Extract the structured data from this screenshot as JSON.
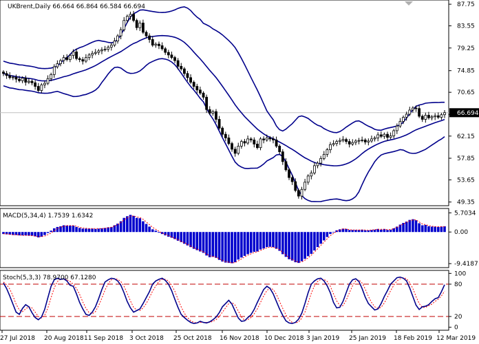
{
  "chart_data": [
    {
      "type": "candlestick",
      "symbol_header": "UKBrent,Daily  66.664 66.864 66.584 66.694",
      "price_scale": [
        87.75,
        83.55,
        79.25,
        74.85,
        70.65,
        66.35,
        62.15,
        57.85,
        53.65,
        49.35
      ],
      "ylim": [
        48.9,
        88.3
      ],
      "last_price_label": "66.694",
      "last_price": 66.694,
      "x_ticks": [
        "27 Jul 2018",
        "20 Aug 2018",
        "11 Sep 2018",
        "3 Oct 2018",
        "25 Oct 2018",
        "16 Nov 2018",
        "10 Dec 2018",
        "3 Jan 2019",
        "25 Jan 2019",
        "18 Feb 2019",
        "12 Mar 2019"
      ],
      "indicator": "Bollinger Bands",
      "close": [
        74.3,
        73.9,
        73.5,
        73.6,
        73.2,
        72.9,
        73.4,
        72.6,
        72.8,
        72.5,
        71.8,
        71.0,
        72.1,
        72.4,
        73.3,
        74.1,
        75.6,
        76.2,
        76.8,
        77.4,
        77.0,
        77.8,
        78.5,
        77.2,
        77.0,
        76.7,
        77.4,
        77.9,
        78.2,
        78.4,
        78.7,
        78.9,
        79.0,
        79.4,
        79.8,
        80.6,
        81.6,
        82.8,
        84.6,
        85.4,
        85.8,
        84.6,
        83.2,
        84.1,
        82.3,
        81.6,
        80.9,
        79.8,
        80.0,
        79.7,
        79.1,
        78.4,
        77.9,
        77.4,
        76.8,
        75.7,
        75.2,
        74.3,
        73.5,
        72.6,
        71.8,
        71.1,
        70.5,
        69.7,
        67.3,
        66.6,
        66.9,
        65.4,
        63.7,
        62.5,
        61.8,
        60.7,
        59.6,
        58.8,
        60.2,
        61.1,
        60.8,
        61.6,
        61.4,
        60.6,
        59.9,
        61.6,
        61.4,
        61.8,
        61.6,
        61.4,
        60.2,
        59.1,
        57.2,
        55.6,
        54.1,
        53.3,
        51.6,
        50.5,
        51.8,
        53.2,
        54.4,
        55.0,
        56.4,
        56.9,
        57.8,
        58.6,
        59.5,
        60.5,
        60.7,
        61.1,
        61.3,
        61.5,
        61.1,
        60.6,
        60.9,
        61.2,
        61.3,
        61.4,
        61.0,
        61.2,
        61.6,
        61.8,
        62.4,
        62.1,
        62.5,
        61.9,
        62.2,
        63.2,
        64.1,
        65.0,
        65.8,
        66.4,
        67.2,
        67.6,
        67.5,
        66.0,
        65.4,
        66.2,
        65.7,
        65.9,
        66.1,
        65.8,
        66.3,
        66.694
      ]
    },
    {
      "type": "macd",
      "label": "MACD(5,34,4) 1.7539 1.6342",
      "scale": [
        "5.7034",
        "0.00",
        "-9.4187"
      ],
      "ylim": [
        -10.2,
        6.6
      ],
      "histogram": [
        -0.6,
        -0.7,
        -0.8,
        -0.9,
        -0.9,
        -1.0,
        -1.0,
        -1.0,
        -1.1,
        -1.1,
        -1.3,
        -1.6,
        -1.4,
        -0.9,
        -0.3,
        0.4,
        1.1,
        1.5,
        1.7,
        2.0,
        1.9,
        1.9,
        1.9,
        1.5,
        1.2,
        1.0,
        1.0,
        1.0,
        1.0,
        0.9,
        1.0,
        1.1,
        1.2,
        1.4,
        1.5,
        2.0,
        2.5,
        3.2,
        4.2,
        4.7,
        5.1,
        4.8,
        4.2,
        4.1,
        3.2,
        2.4,
        1.6,
        0.8,
        0.4,
        -0.2,
        -0.6,
        -1.0,
        -1.4,
        -1.7,
        -2.1,
        -2.6,
        -3.0,
        -3.5,
        -4.0,
        -4.5,
        -5.0,
        -5.4,
        -5.8,
        -6.2,
        -7.0,
        -7.5,
        -7.4,
        -7.7,
        -8.3,
        -8.8,
        -9.1,
        -9.2,
        -9.3,
        -9.0,
        -8.2,
        -7.6,
        -7.1,
        -6.6,
        -6.2,
        -5.9,
        -5.8,
        -5.2,
        -4.9,
        -4.5,
        -4.4,
        -4.5,
        -5.0,
        -5.6,
        -6.6,
        -7.4,
        -8.1,
        -8.5,
        -9.0,
        -9.2,
        -8.7,
        -8.0,
        -7.2,
        -6.5,
        -5.5,
        -4.5,
        -3.5,
        -2.5,
        -1.5,
        -0.6,
        0.0,
        0.5,
        0.8,
        1.0,
        0.9,
        0.6,
        0.6,
        0.6,
        0.6,
        0.7,
        0.5,
        0.5,
        0.6,
        0.7,
        0.9,
        0.7,
        0.9,
        0.6,
        0.7,
        1.1,
        1.6,
        2.2,
        2.7,
        3.1,
        3.6,
        3.8,
        3.5,
        2.6,
        2.0,
        2.1,
        1.7,
        1.6,
        1.6,
        1.5,
        1.6,
        1.7
      ],
      "signal": [
        -0.5,
        -0.6,
        -0.7,
        -0.8,
        -0.8,
        -0.9,
        -1.0,
        -1.0,
        -1.0,
        -1.1,
        -1.2,
        -1.4,
        -1.4,
        -1.2,
        -0.8,
        -0.3,
        0.4,
        1.0,
        1.4,
        1.7,
        1.9,
        1.9,
        1.9,
        1.7,
        1.4,
        1.2,
        1.1,
        1.0,
        1.0,
        1.0,
        1.0,
        1.0,
        1.1,
        1.3,
        1.4,
        1.8,
        2.2,
        2.8,
        3.6,
        4.2,
        4.7,
        4.8,
        4.5,
        4.3,
        3.8,
        3.0,
        2.2,
        1.4,
        0.8,
        0.2,
        -0.3,
        -0.7,
        -1.1,
        -1.5,
        -1.9,
        -2.3,
        -2.8,
        -3.2,
        -3.7,
        -4.2,
        -4.7,
        -5.1,
        -5.5,
        -5.9,
        -6.6,
        -7.1,
        -7.3,
        -7.5,
        -8.0,
        -8.5,
        -8.8,
        -9.0,
        -9.2,
        -9.1,
        -8.6,
        -8.0,
        -7.4,
        -6.9,
        -6.5,
        -6.1,
        -5.9,
        -5.5,
        -5.1,
        -4.7,
        -4.5,
        -4.5,
        -4.8,
        -5.3,
        -6.1,
        -6.9,
        -7.6,
        -8.2,
        -8.7,
        -9.0,
        -8.9,
        -8.4,
        -7.7,
        -6.9,
        -6.0,
        -5.0,
        -4.0,
        -3.0,
        -2.0,
        -1.1,
        -0.4,
        0.2,
        0.6,
        0.9,
        0.9,
        0.7,
        0.6,
        0.6,
        0.6,
        0.6,
        0.6,
        0.5,
        0.6,
        0.7,
        0.8,
        0.8,
        0.8,
        0.7,
        0.7,
        1.0,
        1.4,
        1.9,
        2.4,
        2.9,
        3.3,
        3.6,
        3.6,
        3.0,
        2.4,
        2.2,
        1.9,
        1.7,
        1.6,
        1.6,
        1.6,
        1.6
      ]
    },
    {
      "type": "stochastic",
      "label": "Stoch(5,3,3) 78.9700 67.1280",
      "scale": [
        "100",
        "80",
        "20",
        "0"
      ],
      "levels": [
        80,
        20
      ],
      "ylim": [
        -3,
        103
      ],
      "k": [
        82,
        72,
        58,
        43,
        28,
        24,
        35,
        42,
        38,
        27,
        18,
        14,
        19,
        33,
        55,
        76,
        88,
        91,
        89,
        90,
        86,
        78,
        76,
        62,
        46,
        34,
        24,
        22,
        28,
        38,
        53,
        70,
        84,
        88,
        91,
        90,
        86,
        78,
        64,
        48,
        36,
        28,
        31,
        34,
        44,
        55,
        66,
        80,
        86,
        89,
        91,
        87,
        80,
        68,
        52,
        37,
        24,
        18,
        13,
        9,
        7,
        8,
        11,
        9,
        8,
        10,
        14,
        19,
        27,
        38,
        44,
        50,
        43,
        30,
        17,
        11,
        12,
        18,
        23,
        33,
        46,
        58,
        70,
        76,
        72,
        62,
        48,
        34,
        22,
        12,
        8,
        7,
        9,
        15,
        26,
        44,
        64,
        80,
        86,
        90,
        91,
        86,
        77,
        64,
        46,
        36,
        37,
        48,
        64,
        80,
        88,
        90,
        85,
        72,
        56,
        44,
        38,
        32,
        34,
        44,
        57,
        68,
        80,
        86,
        92,
        93,
        91,
        86,
        73,
        57,
        41,
        33,
        38,
        39,
        42,
        48,
        53,
        55,
        66,
        78.97
      ],
      "d": [
        84,
        79,
        71,
        58,
        43,
        32,
        29,
        34,
        38,
        36,
        28,
        20,
        17,
        22,
        36,
        55,
        73,
        85,
        89,
        90,
        88,
        85,
        80,
        72,
        61,
        47,
        35,
        27,
        25,
        29,
        40,
        54,
        69,
        81,
        88,
        90,
        89,
        85,
        76,
        63,
        49,
        37,
        32,
        31,
        36,
        44,
        55,
        67,
        77,
        85,
        89,
        89,
        86,
        78,
        67,
        52,
        38,
        26,
        18,
        12,
        9,
        8,
        9,
        9,
        9,
        9,
        11,
        14,
        20,
        28,
        36,
        44,
        46,
        41,
        30,
        19,
        13,
        14,
        18,
        25,
        34,
        46,
        58,
        68,
        73,
        70,
        61,
        48,
        35,
        23,
        14,
        9,
        8,
        10,
        17,
        28,
        45,
        63,
        77,
        85,
        89,
        89,
        85,
        76,
        62,
        49,
        40,
        40,
        50,
        64,
        77,
        86,
        88,
        82,
        71,
        57,
        46,
        38,
        35,
        37,
        45,
        56,
        68,
        78,
        86,
        90,
        92,
        90,
        83,
        72,
        57,
        44,
        37,
        37,
        40,
        43,
        48,
        52,
        58,
        67.13
      ]
    }
  ]
}
